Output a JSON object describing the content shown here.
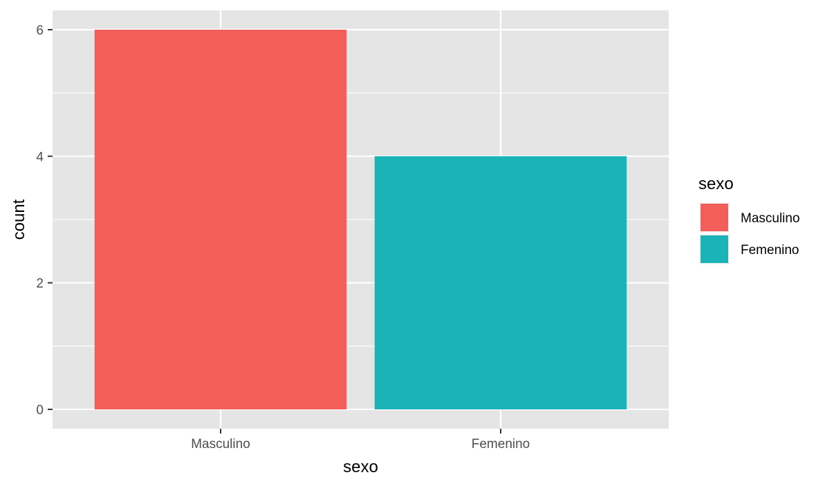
{
  "chart_data": {
    "type": "bar",
    "categories": [
      "Masculino",
      "Femenino"
    ],
    "values": [
      6,
      4
    ],
    "colors": [
      "#F35E5A",
      "#19B3B8"
    ],
    "xlabel": "sexo",
    "ylabel": "count",
    "ylim": [
      0,
      6
    ],
    "yticks": [
      0,
      2,
      4,
      6
    ],
    "grid": true,
    "panel_background": "#E5E5E5",
    "grid_color": "#FFFFFF",
    "legend": {
      "title": "sexo",
      "position": "right",
      "entries": [
        "Masculino",
        "Femenino"
      ]
    }
  }
}
